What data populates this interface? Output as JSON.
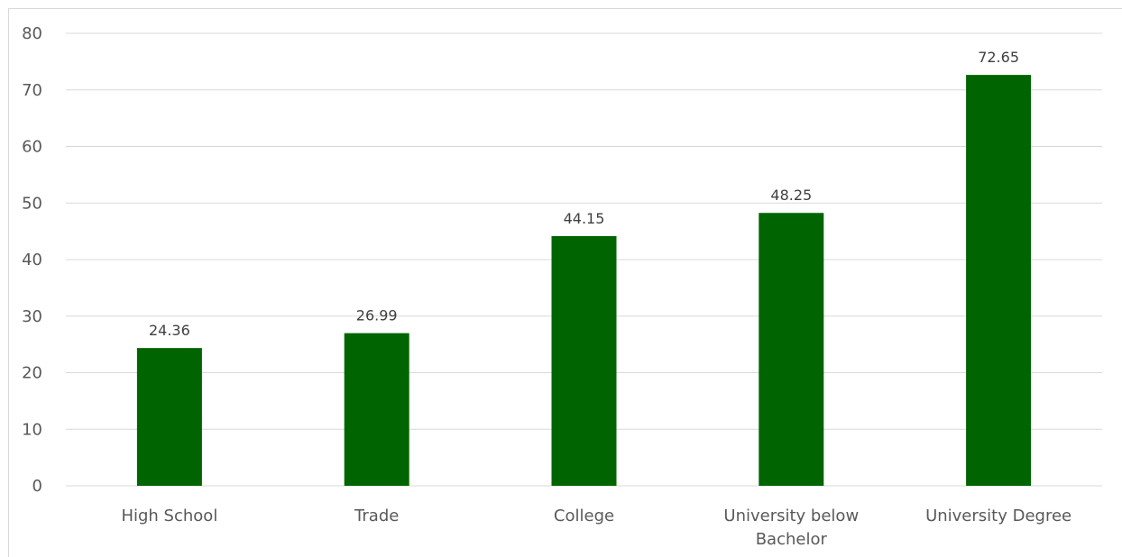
{
  "chart_data": {
    "type": "bar",
    "categories": [
      "High School",
      "Trade",
      "College",
      "University below Bachelor",
      "University Degree"
    ],
    "category_label_lines": [
      [
        "High School"
      ],
      [
        "Trade"
      ],
      [
        "College"
      ],
      [
        "University below",
        "Bachelor"
      ],
      [
        "University Degree"
      ]
    ],
    "values": [
      24.36,
      26.99,
      44.15,
      48.25,
      72.65
    ],
    "value_labels": [
      "24.36",
      "26.99",
      "44.15",
      "48.25",
      "72.65"
    ],
    "ylim": [
      0,
      80
    ],
    "yticks": [
      0,
      10,
      20,
      30,
      40,
      50,
      60,
      70,
      80
    ],
    "title": "",
    "xlabel": "",
    "ylabel": "",
    "grid": true,
    "legend": "none",
    "colors": {
      "bar": "#006400",
      "grid": "#d9d9d9",
      "tick_text": "#595959",
      "label_text": "#404040"
    }
  }
}
